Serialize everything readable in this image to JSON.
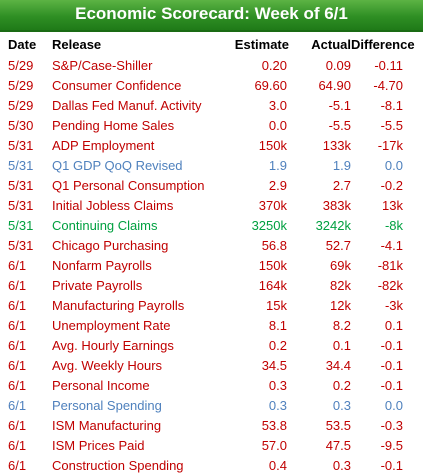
{
  "title": "Economic Scorecard: Week of 6/1",
  "colors": {
    "banner": "#2f8f24",
    "negative": "#c00000",
    "neutral": "#4f81bd",
    "positive": "#00a040"
  },
  "columns": {
    "date": "Date",
    "release": "Release",
    "estimate": "Estimate",
    "actual": "Actual",
    "difference": "Difference"
  },
  "rows": [
    {
      "date": "5/29",
      "release": "S&P/Case-Shiller",
      "estimate": "0.20",
      "actual": "0.09",
      "difference": "-0.11",
      "tone": "negative"
    },
    {
      "date": "5/29",
      "release": "Consumer Confidence",
      "estimate": "69.60",
      "actual": "64.90",
      "difference": "-4.70",
      "tone": "negative"
    },
    {
      "date": "5/29",
      "release": "Dallas Fed Manuf. Activity",
      "estimate": "3.0",
      "actual": "-5.1",
      "difference": "-8.1",
      "tone": "negative"
    },
    {
      "date": "5/30",
      "release": "Pending Home Sales",
      "estimate": "0.0",
      "actual": "-5.5",
      "difference": "-5.5",
      "tone": "negative"
    },
    {
      "date": "5/31",
      "release": "ADP Employment",
      "estimate": "150k",
      "actual": "133k",
      "difference": "-17k",
      "tone": "negative"
    },
    {
      "date": "5/31",
      "release": "Q1 GDP QoQ Revised",
      "estimate": "1.9",
      "actual": "1.9",
      "difference": "0.0",
      "tone": "neutral"
    },
    {
      "date": "5/31",
      "release": "Q1 Personal Consumption",
      "estimate": "2.9",
      "actual": "2.7",
      "difference": "-0.2",
      "tone": "negative"
    },
    {
      "date": "5/31",
      "release": "Initial Jobless Claims",
      "estimate": "370k",
      "actual": "383k",
      "difference": "13k",
      "tone": "negative"
    },
    {
      "date": "5/31",
      "release": "Continuing Claims",
      "estimate": "3250k",
      "actual": "3242k",
      "difference": "-8k",
      "tone": "positive"
    },
    {
      "date": "5/31",
      "release": "Chicago Purchasing",
      "estimate": "56.8",
      "actual": "52.7",
      "difference": "-4.1",
      "tone": "negative"
    },
    {
      "date": "6/1",
      "release": "Nonfarm Payrolls",
      "estimate": "150k",
      "actual": "69k",
      "difference": "-81k",
      "tone": "negative"
    },
    {
      "date": "6/1",
      "release": "Private Payrolls",
      "estimate": "164k",
      "actual": "82k",
      "difference": "-82k",
      "tone": "negative"
    },
    {
      "date": "6/1",
      "release": "Manufacturing Payrolls",
      "estimate": "15k",
      "actual": "12k",
      "difference": "-3k",
      "tone": "negative"
    },
    {
      "date": "6/1",
      "release": "Unemployment Rate",
      "estimate": "8.1",
      "actual": "8.2",
      "difference": "0.1",
      "tone": "negative"
    },
    {
      "date": "6/1",
      "release": "Avg. Hourly Earnings",
      "estimate": "0.2",
      "actual": "0.1",
      "difference": "-0.1",
      "tone": "negative"
    },
    {
      "date": "6/1",
      "release": "Avg. Weekly Hours",
      "estimate": "34.5",
      "actual": "34.4",
      "difference": "-0.1",
      "tone": "negative"
    },
    {
      "date": "6/1",
      "release": "Personal Income",
      "estimate": "0.3",
      "actual": "0.2",
      "difference": "-0.1",
      "tone": "negative"
    },
    {
      "date": "6/1",
      "release": "Personal Spending",
      "estimate": "0.3",
      "actual": "0.3",
      "difference": "0.0",
      "tone": "neutral"
    },
    {
      "date": "6/1",
      "release": "ISM Manufacturing",
      "estimate": "53.8",
      "actual": "53.5",
      "difference": "-0.3",
      "tone": "negative"
    },
    {
      "date": "6/1",
      "release": "ISM Prices Paid",
      "estimate": "57.0",
      "actual": "47.5",
      "difference": "-9.5",
      "tone": "negative"
    },
    {
      "date": "6/1",
      "release": "Construction Spending",
      "estimate": "0.4",
      "actual": "0.3",
      "difference": "-0.1",
      "tone": "negative"
    }
  ]
}
